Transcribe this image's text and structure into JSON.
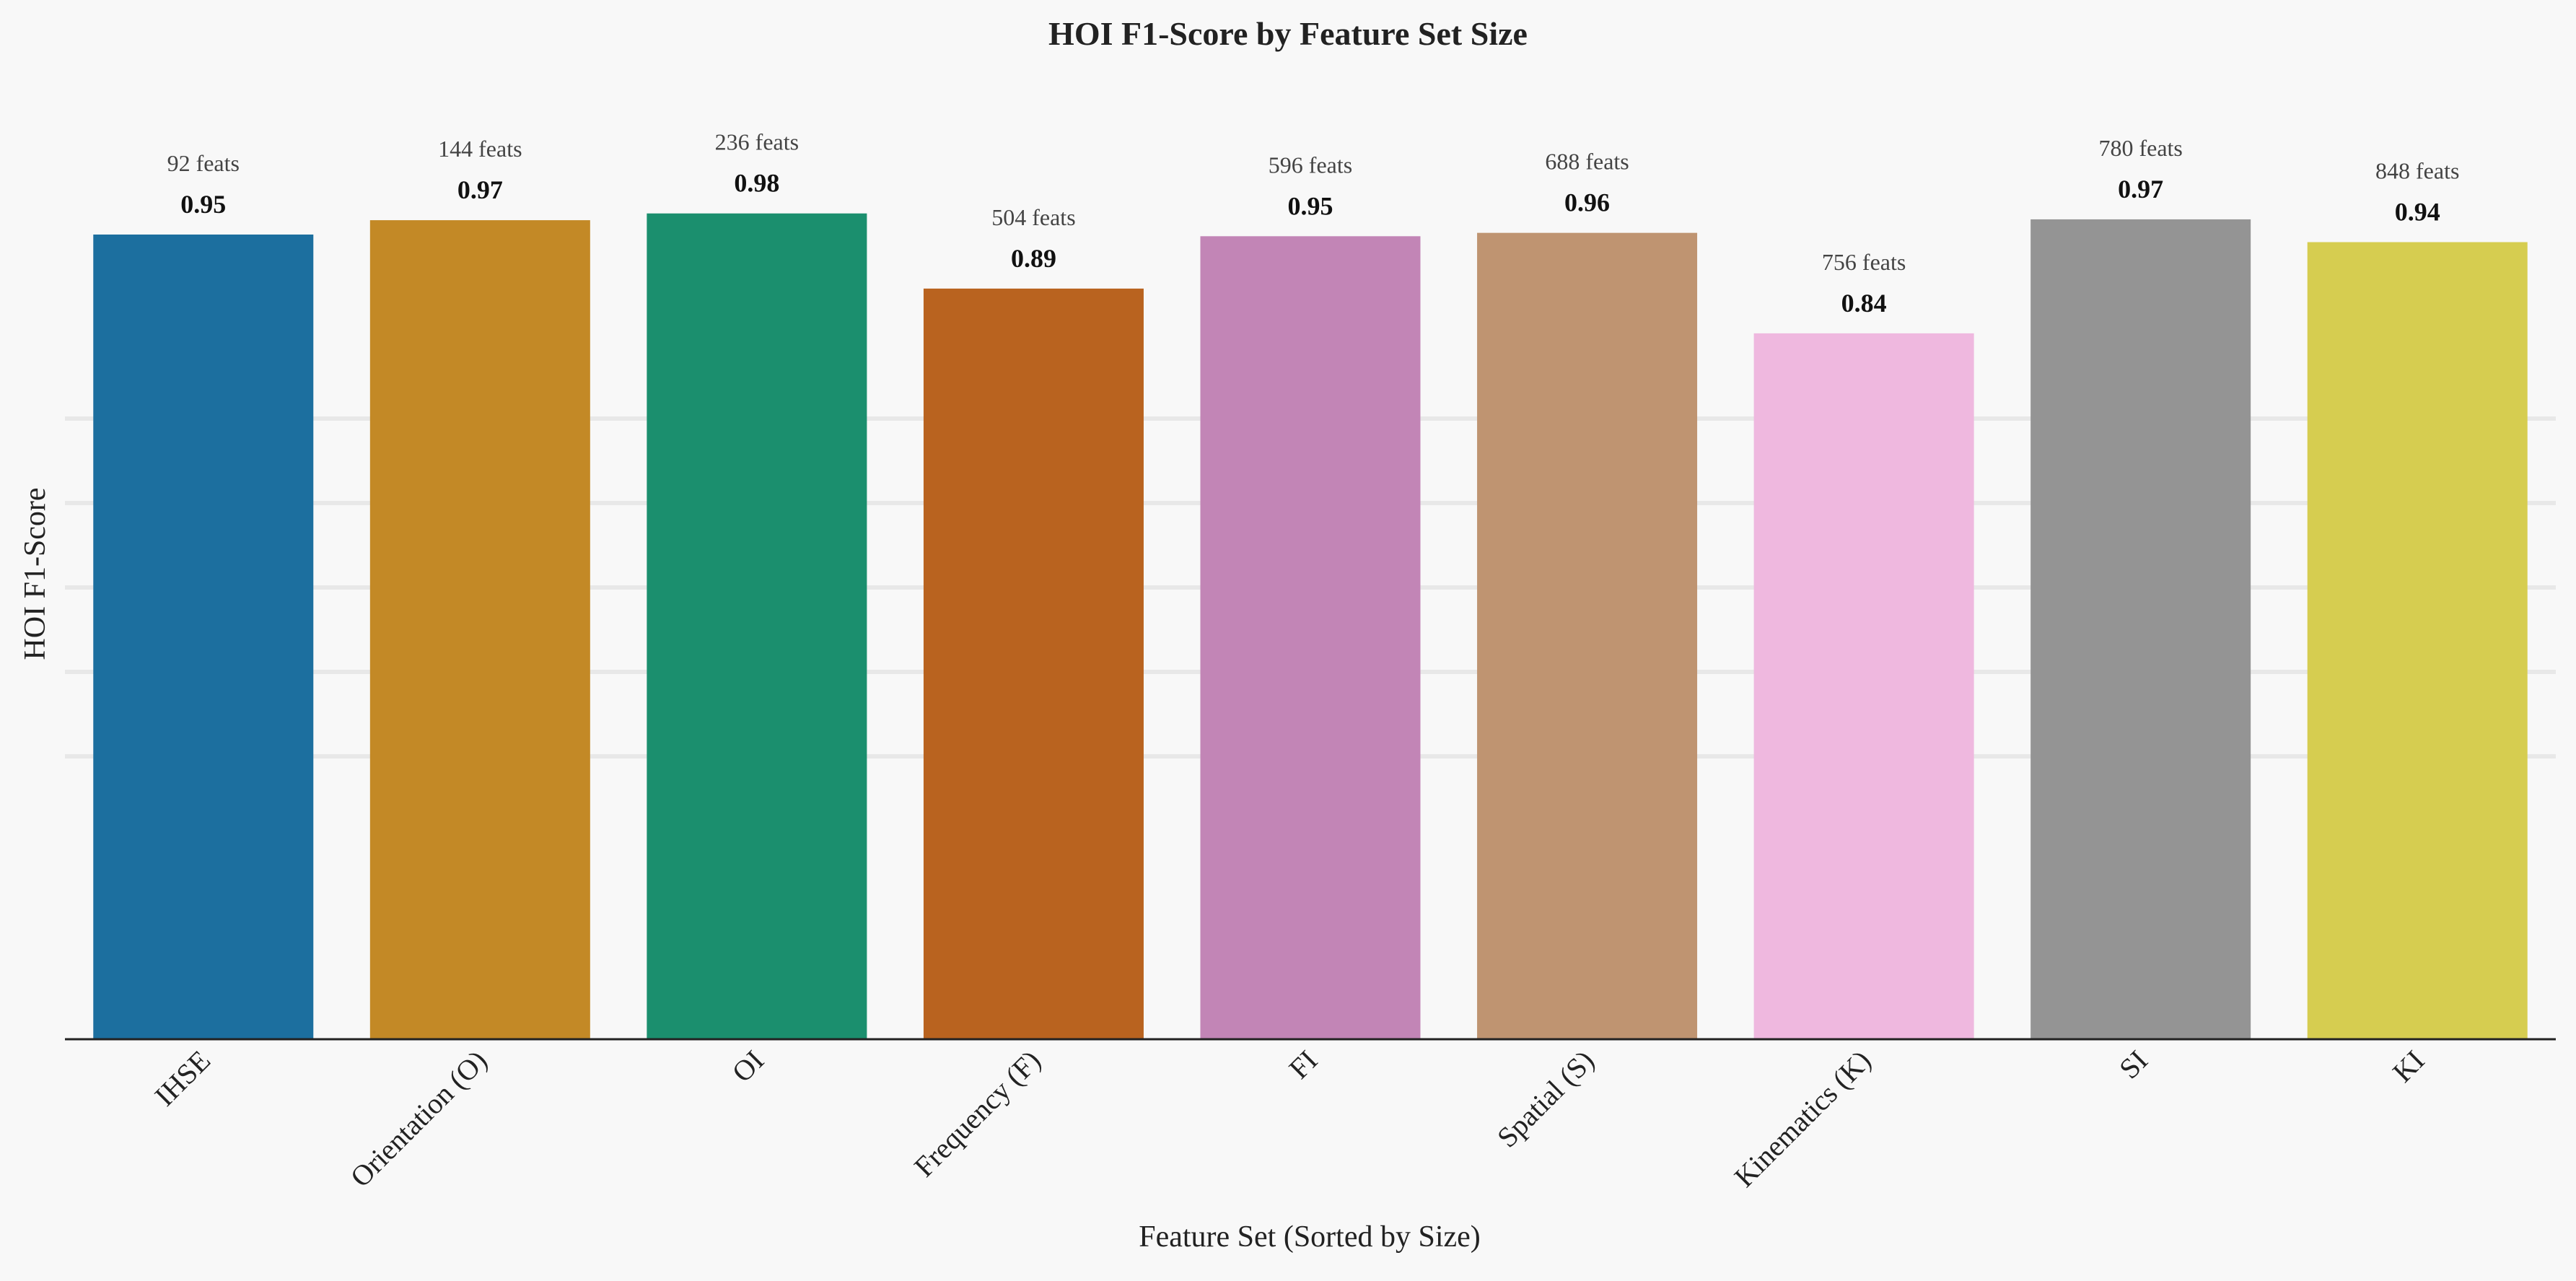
{
  "chart_data": {
    "type": "bar",
    "title": "HOI F1-Score by Feature Set Size",
    "xlabel": "Feature Set (Sorted by Size)",
    "ylabel": "HOI F1-Score",
    "ylim": [
      0,
      1.0
    ],
    "grid": "horizontal",
    "categories": [
      "IHSE",
      "Orientation (O)",
      "OI",
      "Frequency (F)",
      "FI",
      "Spatial (S)",
      "Kinematics (K)",
      "SI",
      "KI"
    ],
    "values": [
      0.953,
      0.97,
      0.978,
      0.889,
      0.951,
      0.955,
      0.836,
      0.971,
      0.944
    ],
    "value_labels": [
      "0.95",
      "0.97",
      "0.98",
      "0.89",
      "0.95",
      "0.96",
      "0.84",
      "0.97",
      "0.94"
    ],
    "feature_labels": [
      "92 feats",
      "144 feats",
      "236 feats",
      "504 feats",
      "596 feats",
      "688 feats",
      "756 feats",
      "780 feats",
      "848 feats"
    ],
    "colors": [
      "#1c6f9f",
      "#c38926",
      "#1b8f6e",
      "#b9631f",
      "#c285b6",
      "#bf9471",
      "#efb8df",
      "#949494",
      "#d6cd50"
    ],
    "grid_color": "#e8e8e8",
    "axis_color": "#222222",
    "background": "#f8f8f8"
  }
}
